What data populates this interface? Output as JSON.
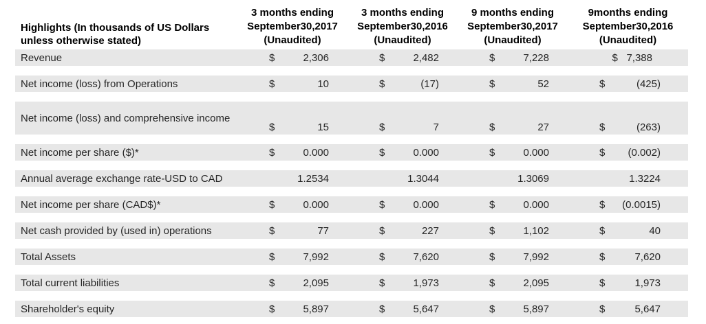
{
  "table": {
    "header_label": "Highlights (In thousands of US Dollars unless otherwise stated)",
    "columns": [
      {
        "line1": "3 months ending",
        "line2": "September30,2017",
        "line3": "(Unaudited)"
      },
      {
        "line1": "3 months ending",
        "line2": "September30,2016",
        "line3": "(Unaudited)"
      },
      {
        "line1": "9 months ending",
        "line2": "September30,2017",
        "line3": "(Unaudited)"
      },
      {
        "line1": "9months ending",
        "line2": "September30,2016",
        "line3": "(Unaudited)"
      }
    ],
    "rows": [
      {
        "label": "Revenue",
        "two_line": false,
        "cells": [
          {
            "sign": "$",
            "value": "2,306"
          },
          {
            "sign": "$",
            "value": "2,482"
          },
          {
            "sign": "$",
            "value": "7,228"
          },
          {
            "sign": "$",
            "value": "7,388",
            "tight": true
          }
        ]
      },
      {
        "label": "Net income (loss) from Operations",
        "two_line": false,
        "cells": [
          {
            "sign": "$",
            "value": "10"
          },
          {
            "sign": "$",
            "value": "(17)"
          },
          {
            "sign": "$",
            "value": "52"
          },
          {
            "sign": "$",
            "value": "(425)"
          }
        ]
      },
      {
        "label": "Net income (loss) and comprehensive income",
        "two_line": true,
        "cells": [
          {
            "sign": "$",
            "value": "15"
          },
          {
            "sign": "$",
            "value": "7"
          },
          {
            "sign": "$",
            "value": "27"
          },
          {
            "sign": "$",
            "value": "(263)"
          }
        ]
      },
      {
        "label": "Net income per share ($)*",
        "two_line": false,
        "cells": [
          {
            "sign": "$",
            "value": "0.000"
          },
          {
            "sign": "$",
            "value": "0.000"
          },
          {
            "sign": "$",
            "value": "0.000"
          },
          {
            "sign": "$",
            "value": "(0.002)"
          }
        ]
      },
      {
        "label": "Annual average exchange rate-USD to CAD",
        "two_line": false,
        "cells": [
          {
            "sign": "",
            "value": "1.2534"
          },
          {
            "sign": "",
            "value": "1.3044"
          },
          {
            "sign": "",
            "value": "1.3069"
          },
          {
            "sign": "",
            "value": "1.3224"
          }
        ]
      },
      {
        "label": "Net income per share (CAD$)*",
        "two_line": false,
        "cells": [
          {
            "sign": "$",
            "value": "0.000"
          },
          {
            "sign": "$",
            "value": "0.000"
          },
          {
            "sign": "$",
            "value": "0.000"
          },
          {
            "sign": "$",
            "value": "(0.0015)"
          }
        ]
      },
      {
        "label": "Net cash provided by (used in) operations",
        "two_line": false,
        "cells": [
          {
            "sign": "$",
            "value": "77"
          },
          {
            "sign": "$",
            "value": "227"
          },
          {
            "sign": "$",
            "value": "1,102"
          },
          {
            "sign": "$",
            "value": "40"
          }
        ]
      },
      {
        "label": "Total Assets",
        "two_line": false,
        "cells": [
          {
            "sign": "$",
            "value": "7,992"
          },
          {
            "sign": "$",
            "value": "7,620"
          },
          {
            "sign": "$",
            "value": "7,992"
          },
          {
            "sign": "$",
            "value": "7,620"
          }
        ]
      },
      {
        "label": "Total current liabilities",
        "two_line": false,
        "cells": [
          {
            "sign": "$",
            "value": "2,095"
          },
          {
            "sign": "$",
            "value": "1,973"
          },
          {
            "sign": "$",
            "value": "2,095"
          },
          {
            "sign": "$",
            "value": "1,973"
          }
        ]
      },
      {
        "label": "Shareholder's equity",
        "two_line": false,
        "cells": [
          {
            "sign": "$",
            "value": "5,897"
          },
          {
            "sign": "$",
            "value": "5,647"
          },
          {
            "sign": "$",
            "value": "5,897"
          },
          {
            "sign": "$",
            "value": "5,647"
          }
        ]
      }
    ],
    "colors": {
      "row_band": "#e7e7e7",
      "text": "#262626",
      "header_text": "#000000",
      "background": "#ffffff"
    }
  }
}
